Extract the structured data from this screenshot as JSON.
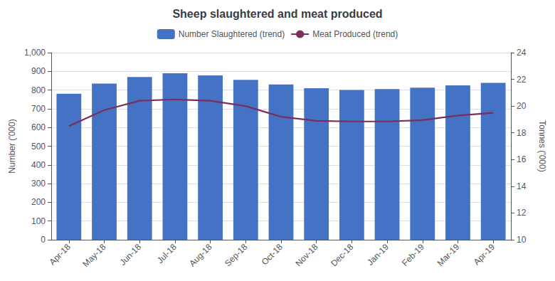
{
  "chart_data": {
    "type": "bar",
    "title": "Sheep slaughtered and meat produced",
    "categories": [
      "Apr-18",
      "May-18",
      "Jun-18",
      "Jul-18",
      "Aug-18",
      "Sep-18",
      "Oct-18",
      "Nov-18",
      "Dec-18",
      "Jan-19",
      "Feb-19",
      "Mar-19",
      "Apr-19"
    ],
    "series": [
      {
        "name": "Number Slaughtered (trend)",
        "type": "bar",
        "color": "#4472C4",
        "values": [
          780,
          835,
          870,
          890,
          878,
          855,
          830,
          810,
          800,
          805,
          813,
          825,
          838
        ]
      },
      {
        "name": "Meat Produced (trend)",
        "type": "line",
        "color": "#7B2D5E",
        "axis": "y2",
        "values": [
          18.5,
          19.7,
          20.4,
          20.5,
          20.4,
          20.0,
          19.2,
          18.9,
          18.85,
          18.85,
          18.95,
          19.3,
          19.5
        ]
      }
    ],
    "ylabel": "Number ('000)",
    "y2label": "Tonnes ('000)",
    "ylim": [
      0,
      1000
    ],
    "yticks": [
      0,
      100,
      200,
      300,
      400,
      500,
      600,
      700,
      800,
      900,
      {
        "value": 1000,
        "label": "1,000"
      }
    ],
    "y2lim": [
      10,
      24
    ],
    "y2ticks": [
      10,
      12,
      14,
      16,
      18,
      20,
      22,
      24
    ],
    "grid": true,
    "legend": "top"
  }
}
